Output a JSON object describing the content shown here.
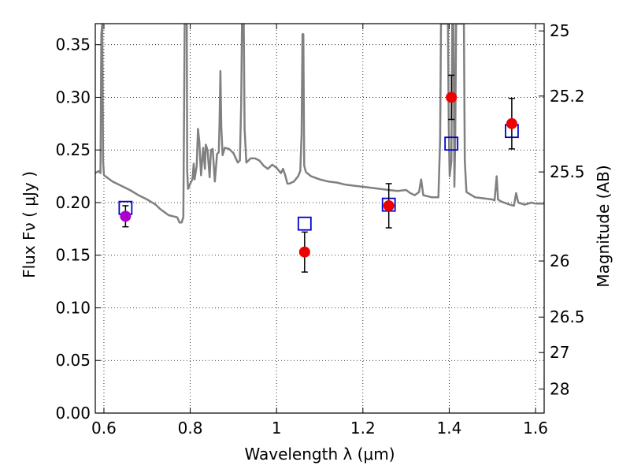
{
  "chart_data": {
    "type": "scatter",
    "xlabel": "Wavelength  λ (μm)",
    "ylabel_left": "Flux  Fν  ( μJy )",
    "ylabel_right": "Magnitude (AB)",
    "xlim": [
      0.58,
      1.62
    ],
    "ylim": [
      0.0,
      0.37
    ],
    "grid": true,
    "x_ticks": [
      {
        "value": 0.6,
        "label": "0.6"
      },
      {
        "value": 0.8,
        "label": "0.8"
      },
      {
        "value": 1.0,
        "label": "1"
      },
      {
        "value": 1.2,
        "label": "1.2"
      },
      {
        "value": 1.4,
        "label": "1.4"
      },
      {
        "value": 1.6,
        "label": "1.6"
      }
    ],
    "y_ticks": [
      {
        "value": 0.0,
        "label": "0.00"
      },
      {
        "value": 0.05,
        "label": "0.05"
      },
      {
        "value": 0.1,
        "label": "0.10"
      },
      {
        "value": 0.15,
        "label": "0.15"
      },
      {
        "value": 0.2,
        "label": "0.20"
      },
      {
        "value": 0.25,
        "label": "0.25"
      },
      {
        "value": 0.3,
        "label": "0.30"
      },
      {
        "value": 0.35,
        "label": "0.35"
      }
    ],
    "right_ticks": [
      {
        "flux": 0.3631,
        "label": "25"
      },
      {
        "flux": 0.3012,
        "label": "25.2"
      },
      {
        "flux": 0.2291,
        "label": "25.5"
      },
      {
        "flux": 0.1445,
        "label": "26"
      },
      {
        "flux": 0.0912,
        "label": "26.5"
      },
      {
        "flux": 0.0575,
        "label": "27"
      },
      {
        "flux": 0.0229,
        "label": "28"
      }
    ],
    "template_spectrum": {
      "color": "#808080",
      "points": [
        [
          0.58,
          0.228
        ],
        [
          0.588,
          0.23
        ],
        [
          0.592,
          0.228
        ],
        [
          0.594,
          0.36
        ],
        [
          0.596,
          0.37
        ],
        [
          0.598,
          0.24
        ],
        [
          0.6,
          0.226
        ],
        [
          0.62,
          0.22
        ],
        [
          0.64,
          0.216
        ],
        [
          0.66,
          0.212
        ],
        [
          0.68,
          0.207
        ],
        [
          0.7,
          0.203
        ],
        [
          0.72,
          0.198
        ],
        [
          0.73,
          0.194
        ],
        [
          0.74,
          0.191
        ],
        [
          0.75,
          0.188
        ],
        [
          0.76,
          0.187
        ],
        [
          0.77,
          0.186
        ],
        [
          0.775,
          0.181
        ],
        [
          0.78,
          0.181
        ],
        [
          0.784,
          0.186
        ],
        [
          0.786,
          0.3
        ],
        [
          0.787,
          0.37
        ],
        [
          0.792,
          0.37
        ],
        [
          0.793,
          0.23
        ],
        [
          0.795,
          0.213
        ],
        [
          0.8,
          0.218
        ],
        [
          0.805,
          0.222
        ],
        [
          0.808,
          0.237
        ],
        [
          0.81,
          0.222
        ],
        [
          0.815,
          0.235
        ],
        [
          0.818,
          0.27
        ],
        [
          0.821,
          0.258
        ],
        [
          0.825,
          0.226
        ],
        [
          0.83,
          0.252
        ],
        [
          0.834,
          0.232
        ],
        [
          0.836,
          0.255
        ],
        [
          0.84,
          0.25
        ],
        [
          0.845,
          0.224
        ],
        [
          0.848,
          0.25
        ],
        [
          0.852,
          0.251
        ],
        [
          0.857,
          0.22
        ],
        [
          0.862,
          0.246
        ],
        [
          0.866,
          0.248
        ],
        [
          0.868,
          0.276
        ],
        [
          0.87,
          0.325
        ],
        [
          0.872,
          0.272
        ],
        [
          0.875,
          0.245
        ],
        [
          0.88,
          0.252
        ],
        [
          0.89,
          0.251
        ],
        [
          0.9,
          0.247
        ],
        [
          0.91,
          0.238
        ],
        [
          0.915,
          0.24
        ],
        [
          0.918,
          0.295
        ],
        [
          0.92,
          0.37
        ],
        [
          0.924,
          0.37
        ],
        [
          0.926,
          0.27
        ],
        [
          0.93,
          0.238
        ],
        [
          0.94,
          0.242
        ],
        [
          0.95,
          0.242
        ],
        [
          0.96,
          0.24
        ],
        [
          0.97,
          0.235
        ],
        [
          0.98,
          0.232
        ],
        [
          0.99,
          0.236
        ],
        [
          1.0,
          0.233
        ],
        [
          1.01,
          0.228
        ],
        [
          1.015,
          0.232
        ],
        [
          1.02,
          0.226
        ],
        [
          1.025,
          0.218
        ],
        [
          1.03,
          0.218
        ],
        [
          1.04,
          0.22
        ],
        [
          1.05,
          0.225
        ],
        [
          1.055,
          0.23
        ],
        [
          1.058,
          0.265
        ],
        [
          1.06,
          0.36
        ],
        [
          1.062,
          0.36
        ],
        [
          1.064,
          0.235
        ],
        [
          1.068,
          0.229
        ],
        [
          1.08,
          0.225
        ],
        [
          1.1,
          0.222
        ],
        [
          1.12,
          0.22
        ],
        [
          1.14,
          0.219
        ],
        [
          1.16,
          0.217
        ],
        [
          1.18,
          0.216
        ],
        [
          1.2,
          0.215
        ],
        [
          1.22,
          0.214
        ],
        [
          1.24,
          0.213
        ],
        [
          1.26,
          0.212
        ],
        [
          1.28,
          0.211
        ],
        [
          1.3,
          0.212
        ],
        [
          1.31,
          0.209
        ],
        [
          1.32,
          0.207
        ],
        [
          1.33,
          0.21
        ],
        [
          1.335,
          0.222
        ],
        [
          1.34,
          0.207
        ],
        [
          1.36,
          0.205
        ],
        [
          1.375,
          0.205
        ],
        [
          1.379,
          0.26
        ],
        [
          1.381,
          0.37
        ],
        [
          1.397,
          0.37
        ],
        [
          1.399,
          0.27
        ],
        [
          1.401,
          0.225
        ],
        [
          1.405,
          0.24
        ],
        [
          1.407,
          0.37
        ],
        [
          1.41,
          0.37
        ],
        [
          1.412,
          0.215
        ],
        [
          1.414,
          0.26
        ],
        [
          1.416,
          0.37
        ],
        [
          1.434,
          0.37
        ],
        [
          1.436,
          0.24
        ],
        [
          1.44,
          0.21
        ],
        [
          1.46,
          0.205
        ],
        [
          1.48,
          0.204
        ],
        [
          1.5,
          0.203
        ],
        [
          1.505,
          0.202
        ],
        [
          1.51,
          0.225
        ],
        [
          1.513,
          0.203
        ],
        [
          1.52,
          0.201
        ],
        [
          1.54,
          0.198
        ],
        [
          1.55,
          0.197
        ],
        [
          1.555,
          0.209
        ],
        [
          1.56,
          0.2
        ],
        [
          1.575,
          0.198
        ],
        [
          1.59,
          0.2
        ],
        [
          1.6,
          0.199
        ],
        [
          1.62,
          0.199
        ]
      ]
    },
    "model_fluxes": {
      "marker": "open-square",
      "color": "#0000cc",
      "points": [
        {
          "x": 0.65,
          "y": 0.195
        },
        {
          "x": 1.065,
          "y": 0.18
        },
        {
          "x": 1.26,
          "y": 0.198
        },
        {
          "x": 1.405,
          "y": 0.256
        },
        {
          "x": 1.545,
          "y": 0.268
        }
      ]
    },
    "observed_fluxes": {
      "marker": "filled-circle",
      "color": "#ee0000",
      "errorbar_color": "#000000",
      "points": [
        {
          "x": 0.65,
          "y": 0.187,
          "err": 0.01,
          "color": "#aa00cc"
        },
        {
          "x": 1.065,
          "y": 0.153,
          "err": 0.019
        },
        {
          "x": 1.26,
          "y": 0.197,
          "err": 0.021
        },
        {
          "x": 1.405,
          "y": 0.3,
          "err": 0.021
        },
        {
          "x": 1.545,
          "y": 0.275,
          "err": 0.024
        }
      ]
    }
  }
}
